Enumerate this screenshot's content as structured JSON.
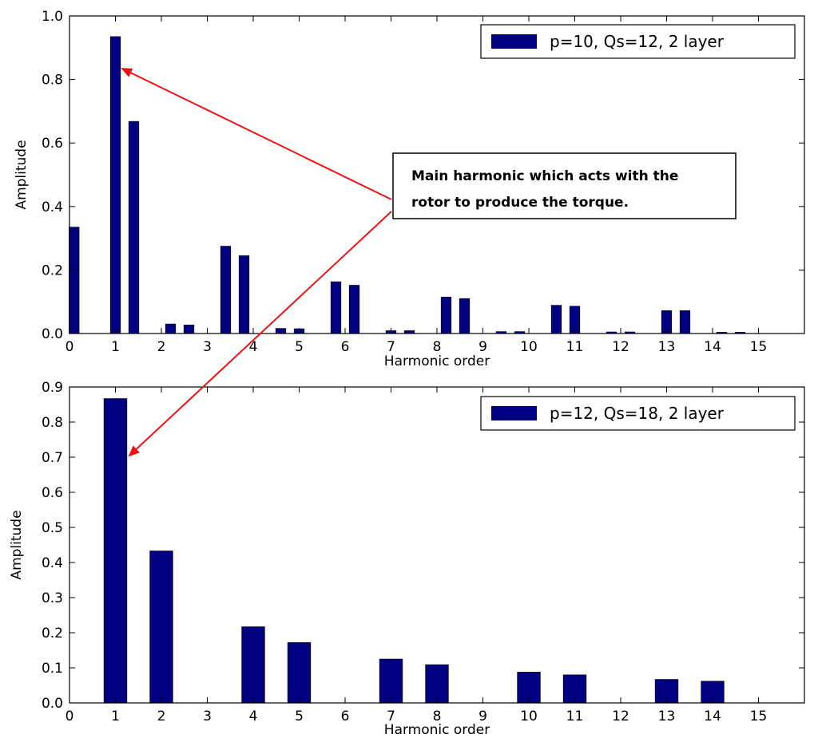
{
  "colors": {
    "bar": "#000080",
    "arrow": "#ee1111",
    "frame": "#000000"
  },
  "annotation": {
    "line1": "Main harmonic which acts with the",
    "line2": "rotor to produce the torque."
  },
  "chart_data": [
    {
      "type": "bar",
      "xlabel": "Harmonic order",
      "ylabel": "Amplitude",
      "xlim": [
        0,
        16
      ],
      "ylim": [
        0,
        1.0
      ],
      "xticks": [
        "0",
        "1",
        "2",
        "3",
        "4",
        "5",
        "6",
        "7",
        "8",
        "9",
        "10",
        "11",
        "12",
        "13",
        "14",
        "15"
      ],
      "yticks": [
        "0.0",
        "0.2",
        "0.4",
        "0.6",
        "0.8",
        "1.0"
      ],
      "bar_width": 0.22,
      "legend_position": "top-right",
      "series": [
        {
          "name": "p=10, Qs=12, 2 layer",
          "x": [
            0.1,
            1.0,
            1.4,
            2.2,
            2.6,
            3.4,
            3.8,
            4.6,
            5.0,
            5.8,
            6.2,
            7.0,
            7.4,
            8.2,
            8.6,
            9.4,
            9.8,
            10.6,
            11.0,
            11.8,
            12.2,
            13.0,
            13.4,
            14.2,
            14.6
          ],
          "values": [
            0.335,
            0.935,
            0.668,
            0.03,
            0.027,
            0.275,
            0.245,
            0.016,
            0.015,
            0.163,
            0.152,
            0.009,
            0.009,
            0.115,
            0.11,
            0.006,
            0.006,
            0.089,
            0.086,
            0.005,
            0.005,
            0.072,
            0.072,
            0.004,
            0.004
          ]
        }
      ]
    },
    {
      "type": "bar",
      "xlabel": "Harmonic order",
      "ylabel": "Amplitude",
      "xlim": [
        0,
        16
      ],
      "ylim": [
        0,
        0.9
      ],
      "xticks": [
        "0",
        "1",
        "2",
        "3",
        "4",
        "5",
        "6",
        "7",
        "8",
        "9",
        "10",
        "11",
        "12",
        "13",
        "14",
        "15"
      ],
      "yticks": [
        "0.0",
        "0.1",
        "0.2",
        "0.3",
        "0.4",
        "0.5",
        "0.6",
        "0.7",
        "0.8",
        "0.9"
      ],
      "bar_width": 0.5,
      "legend_position": "top-right",
      "series": [
        {
          "name": "p=12, Qs=18, 2 layer",
          "x": [
            1,
            2,
            4,
            5,
            7,
            8,
            10,
            11,
            13,
            14
          ],
          "values": [
            0.867,
            0.433,
            0.217,
            0.172,
            0.125,
            0.109,
            0.088,
            0.08,
            0.067,
            0.062
          ]
        }
      ]
    }
  ]
}
